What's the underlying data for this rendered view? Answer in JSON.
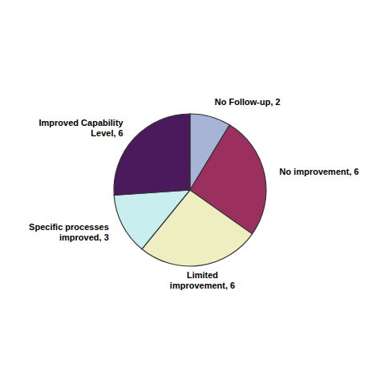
{
  "chart_data": {
    "type": "pie",
    "categories": [
      "No Follow-up, 2",
      "No improvement, 6",
      "Limited\nimprovement, 6",
      "Specific processes\nimproved, 3",
      "Improved Capability\nLevel, 6"
    ],
    "values": [
      2,
      6,
      6,
      3,
      6
    ],
    "colors": [
      "#a8b4d6",
      "#9b3060",
      "#eeeec0",
      "#c8eef0",
      "#4a1a5c"
    ]
  }
}
